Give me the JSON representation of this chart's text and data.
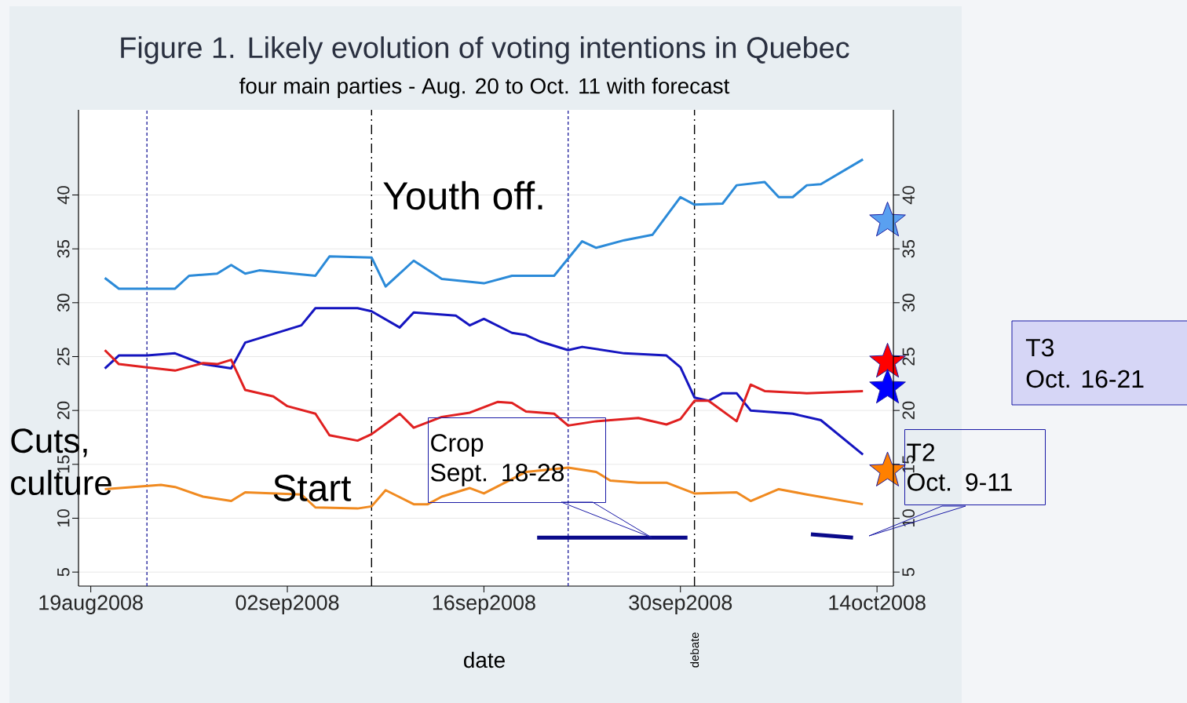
{
  "chart_data": {
    "type": "line",
    "title": "Figure 1. Likely evolution of voting intentions in Quebec",
    "subtitle": "four main parties - Aug. 20 to Oct. 11 with forecast",
    "xlabel": "date",
    "xlim": [
      "2008-08-18T03:00",
      "2008-10-15T04:00"
    ],
    "xticks": [
      {
        "value": "2008-08-19",
        "label": "19aug2008"
      },
      {
        "value": "2008-09-02",
        "label": "02sep2008"
      },
      {
        "value": "2008-09-16",
        "label": "16sep2008"
      },
      {
        "value": "2008-09-30",
        "label": "30sep2008"
      },
      {
        "value": "2008-10-14",
        "label": "14oct2008"
      }
    ],
    "ylim": [
      3.7,
      47.9
    ],
    "yticks": [
      5,
      10,
      15,
      20,
      25,
      30,
      35,
      40
    ],
    "y2lim": [
      3.7,
      47.9
    ],
    "y2ticks": [
      5,
      10,
      15,
      20,
      25,
      30,
      35,
      40
    ],
    "grid": "y",
    "series": [
      {
        "color": "#2b8ad8",
        "x": [
          "2008-08-20",
          "2008-08-21",
          "2008-08-25",
          "2008-08-26",
          "2008-08-28",
          "2008-08-29",
          "2008-08-30",
          "2008-08-31",
          "2008-09-04",
          "2008-09-05",
          "2008-09-08",
          "2008-09-09",
          "2008-09-11",
          "2008-09-13",
          "2008-09-16",
          "2008-09-18",
          "2008-09-21",
          "2008-09-23",
          "2008-09-24",
          "2008-09-26",
          "2008-09-28",
          "2008-09-30",
          "2008-10-01",
          "2008-10-03",
          "2008-10-04",
          "2008-10-06",
          "2008-10-07",
          "2008-10-08",
          "2008-10-09",
          "2008-10-10",
          "2008-10-13"
        ],
        "values": [
          32.3,
          31.3,
          31.3,
          32.5,
          32.7,
          33.5,
          32.7,
          33.0,
          32.5,
          34.3,
          34.2,
          31.5,
          33.9,
          32.2,
          31.8,
          32.5,
          32.5,
          35.7,
          35.1,
          35.8,
          36.3,
          39.8,
          39.1,
          39.2,
          40.9,
          41.2,
          39.8,
          39.8,
          40.9,
          41.0,
          43.3
        ]
      },
      {
        "color": "#1515c0",
        "x": [
          "2008-08-20",
          "2008-08-21",
          "2008-08-23",
          "2008-08-25",
          "2008-08-27",
          "2008-08-29",
          "2008-08-30",
          "2008-08-31",
          "2008-09-03",
          "2008-09-04",
          "2008-09-07",
          "2008-09-08",
          "2008-09-10",
          "2008-09-11",
          "2008-09-14",
          "2008-09-15",
          "2008-09-16",
          "2008-09-18",
          "2008-09-19",
          "2008-09-20",
          "2008-09-22",
          "2008-09-23",
          "2008-09-26",
          "2008-09-29",
          "2008-09-30",
          "2008-10-01",
          "2008-10-02",
          "2008-10-03",
          "2008-10-04",
          "2008-10-05",
          "2008-10-08",
          "2008-10-10",
          "2008-10-13"
        ],
        "values": [
          23.9,
          25.1,
          25.1,
          25.3,
          24.3,
          23.9,
          26.3,
          26.7,
          27.9,
          29.5,
          29.5,
          29.2,
          27.7,
          29.1,
          28.8,
          27.9,
          28.5,
          27.2,
          27.0,
          26.4,
          25.6,
          25.9,
          25.3,
          25.1,
          24.0,
          21.2,
          20.9,
          21.6,
          21.6,
          20.0,
          19.7,
          19.1,
          15.9
        ]
      },
      {
        "color": "#e02020",
        "x": [
          "2008-08-20",
          "2008-08-21",
          "2008-08-23",
          "2008-08-25",
          "2008-08-27",
          "2008-08-28",
          "2008-08-29",
          "2008-08-30",
          "2008-09-01",
          "2008-09-02",
          "2008-09-04",
          "2008-09-05",
          "2008-09-07",
          "2008-09-08",
          "2008-09-10",
          "2008-09-11",
          "2008-09-13",
          "2008-09-15",
          "2008-09-17",
          "2008-09-18",
          "2008-09-19",
          "2008-09-21",
          "2008-09-22",
          "2008-09-24",
          "2008-09-27",
          "2008-09-29",
          "2008-09-30",
          "2008-10-01",
          "2008-10-02",
          "2008-10-04",
          "2008-10-05",
          "2008-10-06",
          "2008-10-09",
          "2008-10-13"
        ],
        "values": [
          25.6,
          24.3,
          24.0,
          23.7,
          24.4,
          24.3,
          24.7,
          21.9,
          21.3,
          20.4,
          19.7,
          17.7,
          17.2,
          17.8,
          19.7,
          18.4,
          19.4,
          19.8,
          20.8,
          20.7,
          19.9,
          19.7,
          18.6,
          19.0,
          19.3,
          18.7,
          19.2,
          20.9,
          20.9,
          19.0,
          22.4,
          21.8,
          21.6,
          21.8
        ]
      },
      {
        "color": "#f08a20",
        "x": [
          "2008-08-20",
          "2008-08-24",
          "2008-08-25",
          "2008-08-27",
          "2008-08-29",
          "2008-08-30",
          "2008-09-03",
          "2008-09-04",
          "2008-09-07",
          "2008-09-08",
          "2008-09-09",
          "2008-09-11",
          "2008-09-12",
          "2008-09-13",
          "2008-09-15",
          "2008-09-16",
          "2008-09-19",
          "2008-09-22",
          "2008-09-24",
          "2008-09-25",
          "2008-09-27",
          "2008-09-29",
          "2008-10-01",
          "2008-10-04",
          "2008-10-05",
          "2008-10-07",
          "2008-10-09",
          "2008-10-13"
        ],
        "values": [
          12.7,
          13.1,
          12.9,
          12.0,
          11.6,
          12.4,
          12.2,
          11.0,
          10.9,
          11.1,
          12.6,
          11.3,
          11.3,
          12.0,
          12.8,
          12.3,
          14.3,
          14.7,
          14.3,
          13.5,
          13.3,
          13.3,
          12.3,
          12.4,
          11.6,
          12.7,
          12.2,
          11.3
        ]
      },
      {
        "type": "line",
        "color": "#0a0a8a",
        "x": [
          "2008-09-19T19:00",
          "2008-09-30T12:00"
        ],
        "values": [
          8.2,
          8.2
        ]
      },
      {
        "type": "line",
        "color": "#0a0a8a",
        "x": [
          "2008-10-09T07:00",
          "2008-10-12T07:00"
        ],
        "values": [
          8.5,
          8.2
        ]
      },
      {
        "type": "scatter",
        "marker": "star",
        "color": "#5aa0f0",
        "x": [
          "2008-10-14T18:00"
        ],
        "values": [
          37.6
        ]
      },
      {
        "type": "scatter",
        "marker": "star",
        "color": "#ff0000",
        "x": [
          "2008-10-14T18:00"
        ],
        "values": [
          24.5
        ]
      },
      {
        "type": "scatter",
        "marker": "star",
        "color": "#0000ff",
        "x": [
          "2008-10-14T18:00"
        ],
        "values": [
          22.1
        ]
      },
      {
        "type": "scatter",
        "marker": "star",
        "color": "#ff8000",
        "x": [
          "2008-10-14T18:00"
        ],
        "values": [
          14.4
        ]
      }
    ],
    "ref_lines": [
      {
        "axis": "x",
        "value": "2008-08-23",
        "color": "#2a2aa0",
        "line_style": "dotted"
      },
      {
        "axis": "x",
        "value": "2008-09-08",
        "color": "#000000",
        "line_style": "dashed"
      },
      {
        "axis": "x",
        "value": "2008-09-22",
        "color": "#2a2aa0",
        "line_style": "dotted"
      },
      {
        "axis": "x",
        "value": "2008-10-01",
        "color": "#000000",
        "line_style": "dashed",
        "label": "debate"
      }
    ],
    "annotations": [
      "Youth  off.",
      "Start",
      "Crop",
      "Sept.  18-28",
      "T2",
      "Oct. 9-11",
      "Cuts,",
      "culture",
      "T3",
      "Oct.  16-21"
    ]
  }
}
